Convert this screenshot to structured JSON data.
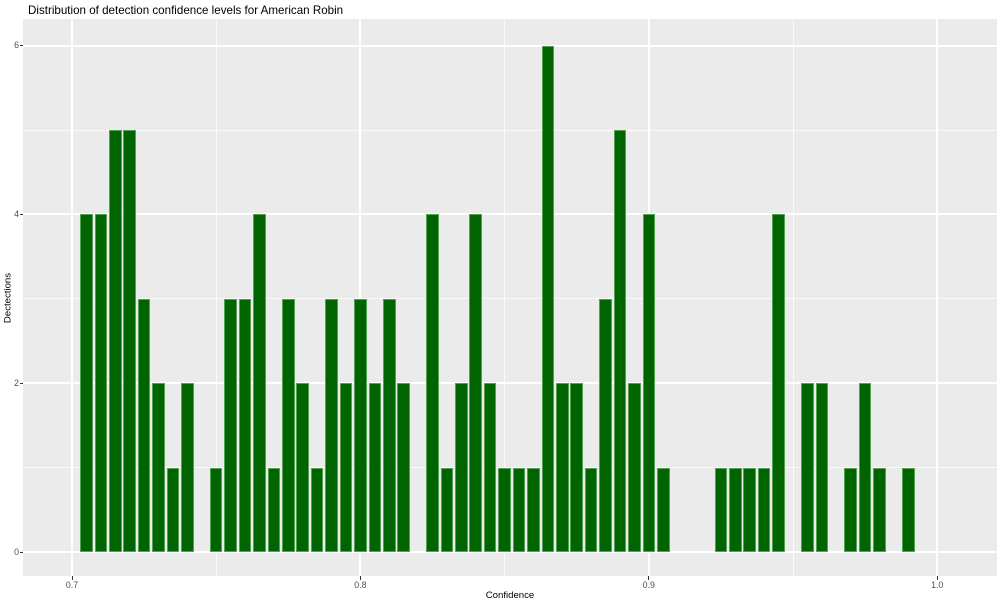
{
  "figure": {
    "title": "Distribution of detection confidence levels for American Robin"
  },
  "chart_data": {
    "type": "bar",
    "subtype": "histogram",
    "title": "Distribution of detection confidence levels for American Robin",
    "xlabel": "Confidence",
    "ylabel": "Dectections",
    "bin_width": 0.005,
    "bin_centers": [
      0.705,
      0.71,
      0.715,
      0.72,
      0.725,
      0.73,
      0.735,
      0.74,
      0.745,
      0.75,
      0.755,
      0.76,
      0.765,
      0.77,
      0.775,
      0.78,
      0.785,
      0.79,
      0.795,
      0.8,
      0.805,
      0.81,
      0.815,
      0.82,
      0.825,
      0.83,
      0.835,
      0.84,
      0.845,
      0.85,
      0.855,
      0.86,
      0.865,
      0.87,
      0.875,
      0.88,
      0.885,
      0.89,
      0.895,
      0.9,
      0.905,
      0.91,
      0.915,
      0.92,
      0.925,
      0.93,
      0.935,
      0.94,
      0.945,
      0.95,
      0.955,
      0.96,
      0.965,
      0.97,
      0.975,
      0.98,
      0.985,
      0.99
    ],
    "counts": [
      4,
      4,
      5,
      5,
      3,
      2,
      1,
      2,
      0,
      1,
      3,
      3,
      4,
      1,
      3,
      2,
      1,
      3,
      2,
      3,
      2,
      3,
      2,
      0,
      4,
      1,
      2,
      4,
      2,
      1,
      1,
      1,
      6,
      2,
      2,
      1,
      3,
      5,
      2,
      4,
      1,
      0,
      0,
      0,
      1,
      1,
      1,
      1,
      4,
      0,
      2,
      2,
      0,
      1,
      2,
      1,
      0,
      1
    ],
    "x_tick_labels": [
      "0.7",
      "0.8",
      "0.9",
      "1.0"
    ],
    "x_tick_values": [
      0.7,
      0.8,
      0.9,
      1.0
    ],
    "x_minor_gridlines": [
      0.75,
      0.85,
      0.95
    ],
    "y_tick_labels": [
      "0",
      "2",
      "4",
      "6"
    ],
    "y_tick_values": [
      0,
      2,
      4,
      6
    ],
    "y_minor_gridlines": [
      1,
      3,
      5
    ],
    "xlim": [
      0.683,
      1.021
    ],
    "ylim": [
      -0.3,
      6.3
    ],
    "grid": "major-minor-white",
    "legend": "none",
    "colors": {
      "bar_fill": "#006400",
      "bar_border": "#54a254",
      "panel_bg": "#ebebeb",
      "gridline": "#ffffff",
      "tick_mark": "#333333",
      "tick_label": "#4d4d4d",
      "text": "#000000",
      "background": "#ffffff"
    }
  }
}
